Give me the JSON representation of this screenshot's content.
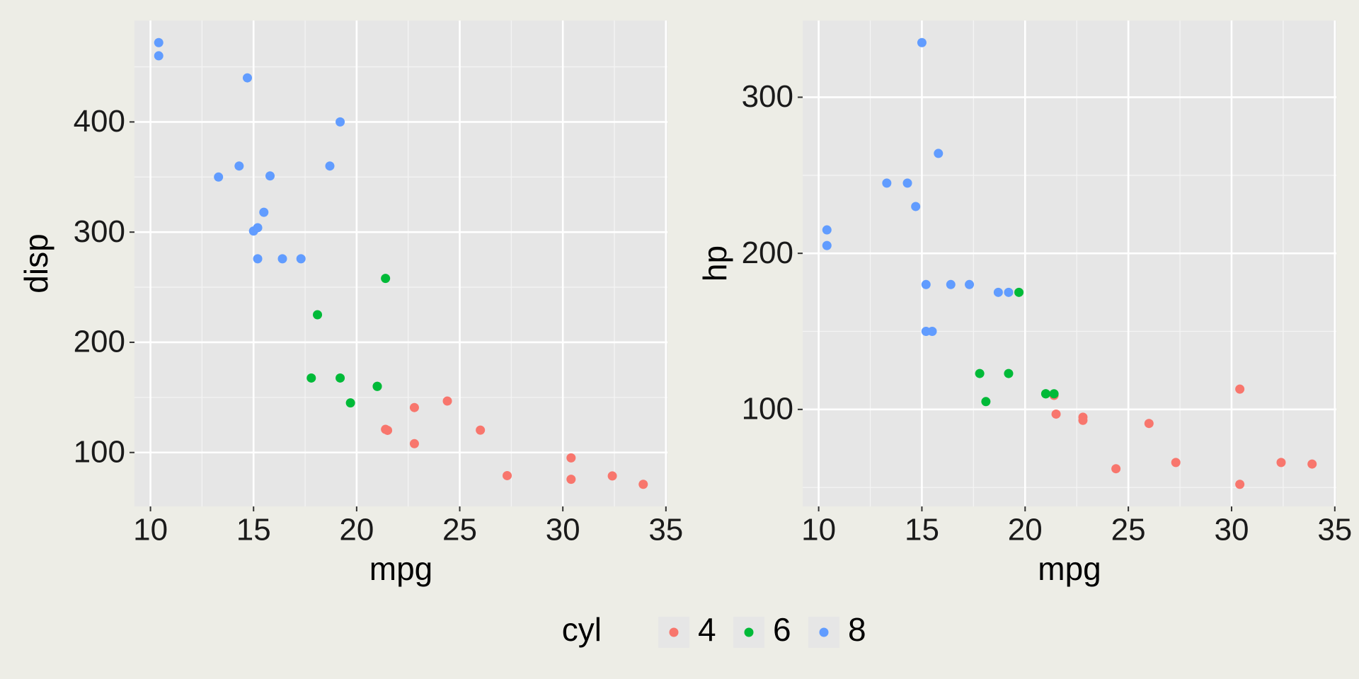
{
  "legend": {
    "title": "cyl"
  },
  "chart_data": [
    {
      "type": "scatter",
      "xlabel": "mpg",
      "ylabel": "disp",
      "xlim": [
        9.225,
        35.075
      ],
      "xticks": [
        10,
        15,
        20,
        25,
        30,
        35
      ],
      "ylim": [
        51.055,
        492.045
      ],
      "yticks": [
        100,
        200,
        300,
        400
      ],
      "grid": true,
      "series": [
        {
          "name": "4",
          "color": "#F8766D",
          "x": [
            22.8,
            24.4,
            22.8,
            32.4,
            30.4,
            33.9,
            21.5,
            27.3,
            26,
            30.4,
            21.4
          ],
          "values": [
            108,
            146.7,
            140.8,
            78.7,
            75.7,
            71.1,
            120.1,
            79,
            120.3,
            95.1,
            121
          ]
        },
        {
          "name": "6",
          "color": "#00BA38",
          "x": [
            21,
            21,
            21.4,
            18.1,
            19.2,
            17.8,
            19.7
          ],
          "values": [
            160,
            160,
            258,
            225,
            167.6,
            167.6,
            145
          ]
        },
        {
          "name": "8",
          "color": "#619CFF",
          "x": [
            18.7,
            14.3,
            16.4,
            17.3,
            15.2,
            10.4,
            10.4,
            14.7,
            15.5,
            15.2,
            13.3,
            19.2,
            15.8,
            15
          ],
          "values": [
            360,
            360,
            275.8,
            275.8,
            275.8,
            472,
            460,
            440,
            318,
            304,
            350,
            400,
            351,
            301
          ]
        }
      ]
    },
    {
      "type": "scatter",
      "xlabel": "mpg",
      "ylabel": "hp",
      "xlim": [
        9.225,
        35.075
      ],
      "xticks": [
        10,
        15,
        20,
        25,
        30,
        35
      ],
      "ylim": [
        37.85,
        349.15
      ],
      "yticks": [
        100,
        200,
        300
      ],
      "grid": true,
      "series": [
        {
          "name": "4",
          "color": "#F8766D",
          "x": [
            22.8,
            24.4,
            22.8,
            32.4,
            30.4,
            33.9,
            21.5,
            27.3,
            26,
            30.4,
            21.4
          ],
          "values": [
            93,
            62,
            95,
            66,
            52,
            65,
            97,
            66,
            91,
            113,
            109
          ]
        },
        {
          "name": "6",
          "color": "#00BA38",
          "x": [
            21,
            21,
            21.4,
            18.1,
            19.2,
            17.8,
            19.7
          ],
          "values": [
            110,
            110,
            110,
            105,
            123,
            123,
            175
          ]
        },
        {
          "name": "8",
          "color": "#619CFF",
          "x": [
            18.7,
            14.3,
            16.4,
            17.3,
            15.2,
            10.4,
            10.4,
            14.7,
            15.5,
            15.2,
            13.3,
            19.2,
            15.8,
            15
          ],
          "values": [
            175,
            245,
            180,
            180,
            180,
            205,
            215,
            230,
            150,
            150,
            245,
            175,
            264,
            335
          ]
        }
      ]
    }
  ]
}
